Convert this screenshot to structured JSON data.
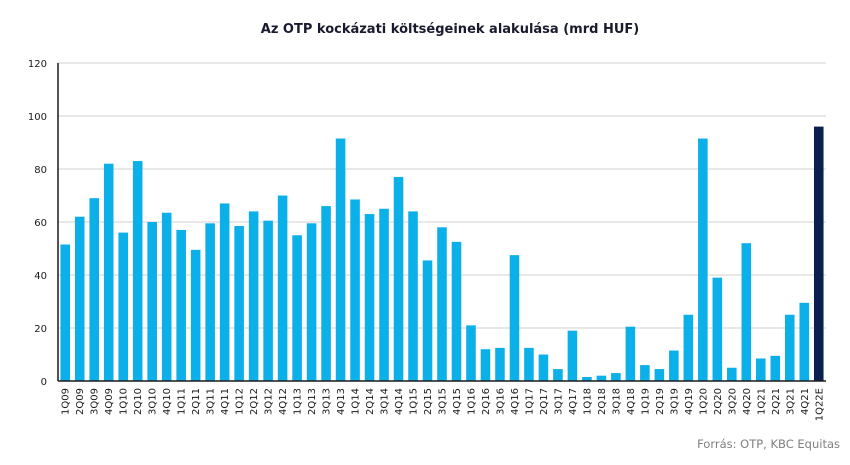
{
  "chart_data": {
    "type": "bar",
    "title": "Az OTP kockázati költségeinek alakulása (mrd HUF)",
    "source": "Forrás: OTP, KBC Equitas",
    "ylim": [
      0,
      120
    ],
    "yticks": [
      0,
      20,
      40,
      60,
      80,
      100,
      120
    ],
    "grid": true,
    "categories": [
      "1Q09",
      "2Q09",
      "3Q09",
      "4Q09",
      "1Q10",
      "2Q10",
      "3Q10",
      "4Q10",
      "1Q11",
      "2Q11",
      "3Q11",
      "4Q11",
      "1Q12",
      "2Q12",
      "3Q12",
      "4Q12",
      "1Q13",
      "2Q13",
      "3Q13",
      "4Q13",
      "1Q14",
      "2Q14",
      "3Q14",
      "4Q14",
      "1Q15",
      "2Q15",
      "3Q15",
      "4Q15",
      "1Q16",
      "2Q16",
      "3Q16",
      "4Q16",
      "1Q17",
      "2Q17",
      "3Q17",
      "4Q17",
      "1Q18",
      "2Q18",
      "3Q18",
      "4Q18",
      "1Q19",
      "2Q19",
      "3Q19",
      "4Q19",
      "1Q20",
      "2Q20",
      "3Q20",
      "4Q20",
      "1Q21",
      "2Q21",
      "3Q21",
      "4Q21",
      "1Q22E"
    ],
    "values": [
      51.5,
      62,
      69,
      82,
      56,
      83,
      60,
      63.5,
      57,
      49.5,
      59.5,
      67,
      58.5,
      64,
      60.5,
      70,
      55,
      59.5,
      66,
      91.5,
      68.5,
      63,
      65,
      77,
      64,
      45.5,
      58,
      52.5,
      21,
      12,
      12.5,
      47.5,
      12.5,
      10,
      4.5,
      19,
      1.5,
      2,
      3,
      20.5,
      6,
      4.5,
      11.5,
      25,
      91.5,
      39,
      5,
      52,
      8.5,
      9.5,
      25,
      29.5,
      96
    ],
    "colors": {
      "bar": "#0cb0e8",
      "highlight": "#0b1f4e",
      "grid": "#d0d0d0",
      "axis": "#1a1a1a"
    },
    "highlight_last": true
  }
}
